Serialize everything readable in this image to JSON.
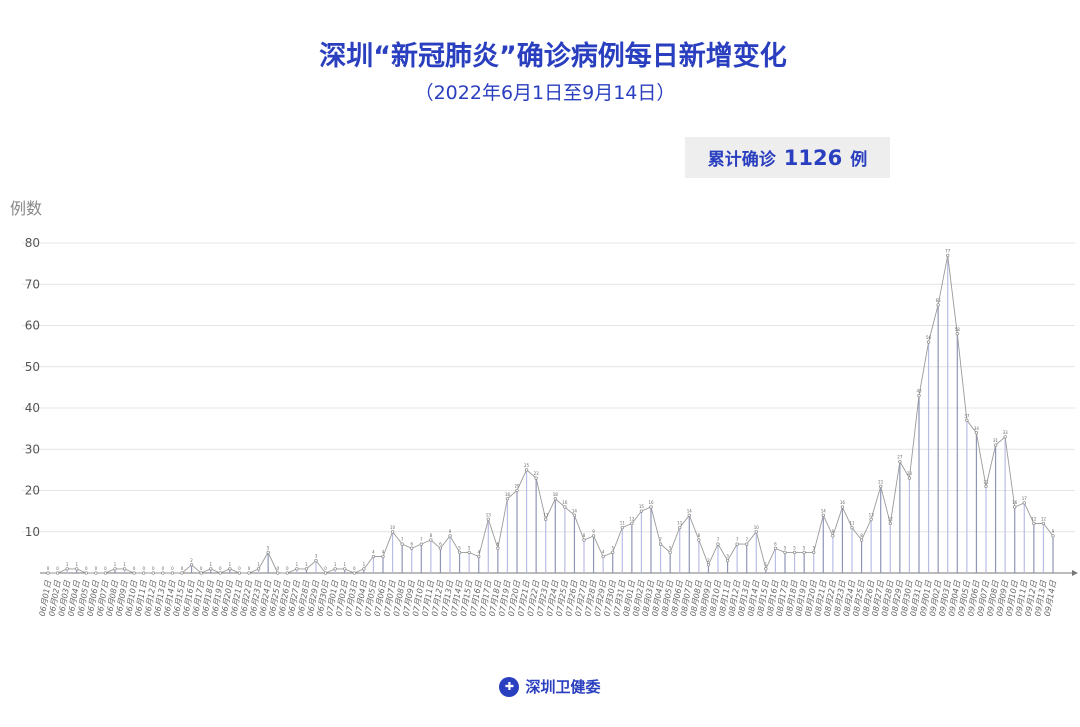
{
  "title": "深圳“新冠肺炎”确诊病例每日新增变化",
  "subtitle": "（2022年6月1日至9月14日）",
  "total": {
    "label": "累计确诊",
    "value": "1126",
    "unit": "例"
  },
  "footer": {
    "org": "深圳卫健委"
  },
  "colors": {
    "accent": "#2a3fbf",
    "line": "#9a9a9a",
    "bar_a": "#b9bde6",
    "bar_b": "#8f95b8"
  },
  "chart_data": {
    "type": "line",
    "ylabel": "例数",
    "ylim": [
      0,
      80
    ],
    "yticks": [
      10,
      20,
      30,
      40,
      50,
      60,
      70,
      80
    ],
    "grid": true,
    "x": [
      "06月01日",
      "06月02日",
      "06月03日",
      "06月04日",
      "06月05日",
      "06月06日",
      "06月07日",
      "06月08日",
      "06月09日",
      "06月10日",
      "06月11日",
      "06月12日",
      "06月13日",
      "06月14日",
      "06月15日",
      "06月16日",
      "06月17日",
      "06月18日",
      "06月19日",
      "06月20日",
      "06月21日",
      "06月22日",
      "06月23日",
      "06月24日",
      "06月25日",
      "06月26日",
      "06月27日",
      "06月28日",
      "06月29日",
      "06月30日",
      "07月01日",
      "07月02日",
      "07月03日",
      "07月04日",
      "07月05日",
      "07月06日",
      "07月07日",
      "07月08日",
      "07月09日",
      "07月10日",
      "07月11日",
      "07月12日",
      "07月13日",
      "07月14日",
      "07月15日",
      "07月16日",
      "07月17日",
      "07月18日",
      "07月19日",
      "07月20日",
      "07月21日",
      "07月22日",
      "07月23日",
      "07月24日",
      "07月25日",
      "07月26日",
      "07月27日",
      "07月28日",
      "07月29日",
      "07月30日",
      "07月31日",
      "08月01日",
      "08月02日",
      "08月03日",
      "08月04日",
      "08月05日",
      "08月06日",
      "08月07日",
      "08月08日",
      "08月09日",
      "08月10日",
      "08月11日",
      "08月12日",
      "08月13日",
      "08月14日",
      "08月15日",
      "08月16日",
      "08月17日",
      "08月18日",
      "08月19日",
      "08月20日",
      "08月21日",
      "08月22日",
      "08月23日",
      "08月24日",
      "08月25日",
      "08月26日",
      "08月27日",
      "08月28日",
      "08月29日",
      "08月30日",
      "08月31日",
      "09月01日",
      "09月02日",
      "09月03日",
      "09月04日",
      "09月05日",
      "09月06日",
      "09月07日",
      "09月08日",
      "09月09日",
      "09月10日",
      "09月11日",
      "09月12日",
      "09月13日",
      "09月14日"
    ],
    "values": [
      0,
      0,
      1,
      1,
      0,
      0,
      0,
      1,
      1,
      0,
      0,
      0,
      0,
      0,
      0,
      2,
      0,
      1,
      0,
      1,
      0,
      0,
      1,
      5,
      0,
      0,
      1,
      1,
      3,
      0,
      1,
      1,
      0,
      1,
      4,
      4,
      10,
      7,
      6,
      7,
      8,
      6,
      9,
      5,
      5,
      4,
      13,
      6,
      18,
      20,
      25,
      23,
      13,
      18,
      16,
      14,
      8,
      9,
      4,
      5,
      11,
      12,
      15,
      16,
      7,
      5,
      11,
      14,
      8,
      2,
      7,
      3,
      7,
      7,
      10,
      1,
      6,
      5,
      5,
      5,
      5,
      14,
      9,
      16,
      11,
      8,
      13,
      21,
      12,
      27,
      23,
      43,
      56,
      65,
      77,
      58,
      37,
      34,
      21,
      31,
      33,
      16,
      17,
      12,
      12,
      9
    ]
  }
}
